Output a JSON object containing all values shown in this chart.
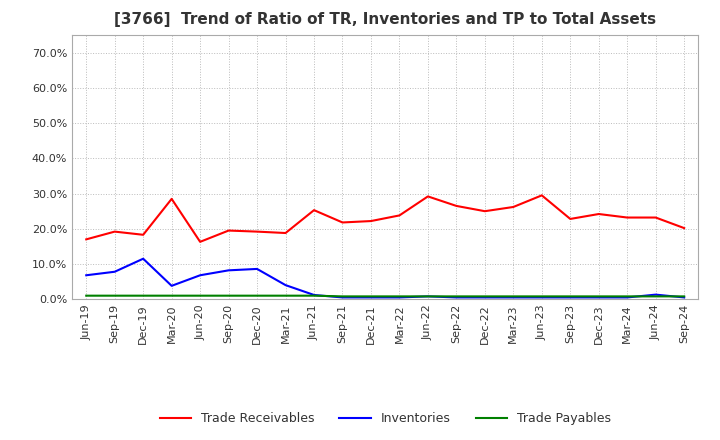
{
  "title": "[3766]  Trend of Ratio of TR, Inventories and TP to Total Assets",
  "x_labels": [
    "Jun-19",
    "Sep-19",
    "Dec-19",
    "Mar-20",
    "Jun-20",
    "Sep-20",
    "Dec-20",
    "Mar-21",
    "Jun-21",
    "Sep-21",
    "Dec-21",
    "Mar-22",
    "Jun-22",
    "Sep-22",
    "Dec-22",
    "Mar-23",
    "Jun-23",
    "Sep-23",
    "Dec-23",
    "Mar-24",
    "Jun-24",
    "Sep-24"
  ],
  "trade_receivables": [
    0.17,
    0.192,
    0.183,
    0.285,
    0.163,
    0.195,
    0.192,
    0.188,
    0.253,
    0.218,
    0.222,
    0.238,
    0.292,
    0.265,
    0.25,
    0.262,
    0.295,
    0.228,
    0.242,
    0.232,
    0.232,
    0.202
  ],
  "inventories": [
    0.068,
    0.078,
    0.115,
    0.038,
    0.068,
    0.082,
    0.086,
    0.04,
    0.012,
    0.005,
    0.005,
    0.005,
    0.008,
    0.005,
    0.005,
    0.005,
    0.005,
    0.005,
    0.005,
    0.005,
    0.013,
    0.005
  ],
  "trade_payables": [
    0.01,
    0.01,
    0.01,
    0.01,
    0.01,
    0.01,
    0.01,
    0.01,
    0.01,
    0.008,
    0.008,
    0.008,
    0.008,
    0.008,
    0.008,
    0.008,
    0.008,
    0.008,
    0.008,
    0.008,
    0.008,
    0.008
  ],
  "tr_color": "#ff0000",
  "inv_color": "#0000ff",
  "tp_color": "#008000",
  "ylim": [
    0.0,
    0.75
  ],
  "yticks": [
    0.0,
    0.1,
    0.2,
    0.3,
    0.4,
    0.5,
    0.6,
    0.7
  ],
  "legend_labels": [
    "Trade Receivables",
    "Inventories",
    "Trade Payables"
  ],
  "background_color": "#ffffff",
  "grid_color": "#bbbbbb",
  "title_fontsize": 11,
  "tick_fontsize": 8,
  "legend_fontsize": 9
}
